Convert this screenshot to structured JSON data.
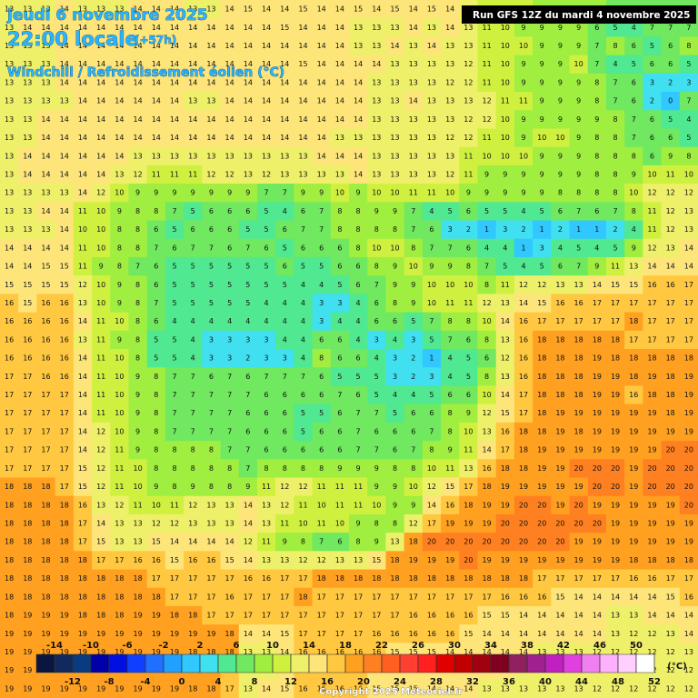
{
  "header": {
    "date": "jeudi 6 novembre 2025",
    "time": "22:00 locale",
    "offset": "(+57h)",
    "parameter": "Windchill / Refroidissement éolien (°C)",
    "run": "Run GFS 12Z du mardi 4 novembre 2025"
  },
  "footer": {
    "copyright": "Copyright 2025 Meteociel.fr"
  },
  "legend": {
    "unit": "(°C)",
    "ticks": [
      -14,
      -12,
      -10,
      -8,
      -6,
      -4,
      -2,
      0,
      2,
      4,
      6,
      8,
      10,
      12,
      14,
      16,
      18,
      20,
      22,
      24,
      26,
      28,
      30,
      32,
      34,
      36,
      38,
      40,
      42,
      44,
      46,
      48,
      50,
      52
    ],
    "colors": [
      "#0a1640",
      "#102a60",
      "#0a3a80",
      "#0000a8",
      "#0010e0",
      "#1040ff",
      "#2070ff",
      "#20a0ff",
      "#30c8ff",
      "#40e0f0",
      "#50e890",
      "#70e860",
      "#a0ee40",
      "#d0f040",
      "#eef06a",
      "#fde57a",
      "#ffc840",
      "#ffa020",
      "#ff8020",
      "#ff6020",
      "#ff4030",
      "#ff2020",
      "#e00000",
      "#c00000",
      "#a00010",
      "#800020",
      "#902060",
      "#a02090",
      "#c020c0",
      "#e040e0",
      "#f080f0",
      "#ffb0ff",
      "#ffd0ff",
      "#ffffff"
    ]
  },
  "grid": {
    "values": [
      [
        13,
        13,
        13,
        14,
        13,
        13,
        13,
        14,
        14,
        14,
        13,
        13,
        14,
        15,
        14,
        14,
        15,
        14,
        14,
        15,
        14,
        15,
        14,
        15,
        14,
        13,
        11,
        10,
        10,
        9,
        9,
        9,
        8,
        7,
        7,
        7,
        7,
        7
      ],
      [
        13,
        14,
        14,
        14,
        14,
        14,
        14,
        14,
        14,
        14,
        14,
        14,
        14,
        14,
        14,
        15,
        14,
        14,
        14,
        13,
        13,
        13,
        14,
        13,
        14,
        13,
        11,
        10,
        9,
        9,
        9,
        9,
        6,
        5,
        4,
        7,
        7,
        7
      ],
      [
        13,
        13,
        13,
        14,
        14,
        14,
        14,
        14,
        14,
        14,
        14,
        14,
        14,
        14,
        14,
        14,
        14,
        14,
        14,
        13,
        13,
        14,
        13,
        14,
        13,
        13,
        11,
        10,
        10,
        9,
        9,
        9,
        7,
        8,
        6,
        5,
        6,
        8
      ],
      [
        13,
        13,
        13,
        14,
        14,
        14,
        14,
        14,
        14,
        14,
        14,
        14,
        14,
        14,
        14,
        14,
        15,
        14,
        14,
        14,
        14,
        13,
        13,
        13,
        13,
        12,
        11,
        10,
        9,
        9,
        9,
        10,
        7,
        4,
        5,
        6,
        6,
        5
      ],
      [
        13,
        13,
        13,
        14,
        14,
        14,
        14,
        14,
        14,
        14,
        14,
        14,
        14,
        14,
        14,
        14,
        14,
        14,
        14,
        14,
        13,
        13,
        13,
        13,
        12,
        12,
        11,
        10,
        9,
        9,
        9,
        9,
        8,
        7,
        6,
        3,
        2,
        3
      ],
      [
        13,
        13,
        13,
        13,
        14,
        14,
        14,
        14,
        14,
        14,
        13,
        13,
        14,
        14,
        14,
        14,
        14,
        14,
        14,
        14,
        13,
        13,
        14,
        13,
        13,
        13,
        12,
        11,
        11,
        9,
        9,
        9,
        8,
        7,
        6,
        2,
        0,
        7
      ],
      [
        13,
        13,
        14,
        14,
        14,
        14,
        14,
        14,
        14,
        14,
        14,
        14,
        14,
        14,
        14,
        14,
        14,
        14,
        14,
        14,
        13,
        13,
        13,
        13,
        13,
        12,
        12,
        10,
        9,
        9,
        9,
        9,
        9,
        8,
        7,
        6,
        5,
        4
      ],
      [
        13,
        13,
        14,
        14,
        14,
        14,
        14,
        14,
        14,
        14,
        14,
        14,
        14,
        14,
        14,
        14,
        14,
        14,
        13,
        13,
        13,
        13,
        13,
        13,
        12,
        12,
        11,
        10,
        9,
        10,
        10,
        9,
        8,
        8,
        7,
        6,
        6,
        5
      ],
      [
        13,
        14,
        14,
        14,
        14,
        14,
        14,
        13,
        13,
        13,
        13,
        13,
        13,
        13,
        13,
        13,
        13,
        14,
        14,
        14,
        13,
        13,
        13,
        13,
        13,
        11,
        10,
        10,
        10,
        9,
        9,
        9,
        8,
        8,
        8,
        6,
        9,
        8
      ],
      [
        13,
        14,
        14,
        14,
        14,
        14,
        13,
        12,
        11,
        11,
        11,
        12,
        12,
        13,
        12,
        13,
        13,
        13,
        13,
        14,
        13,
        13,
        13,
        13,
        12,
        11,
        9,
        9,
        9,
        9,
        9,
        9,
        8,
        8,
        9,
        10,
        11,
        10
      ],
      [
        13,
        13,
        13,
        13,
        14,
        12,
        10,
        9,
        9,
        9,
        9,
        9,
        9,
        9,
        7,
        7,
        9,
        9,
        10,
        9,
        10,
        10,
        11,
        11,
        10,
        9,
        9,
        9,
        9,
        9,
        8,
        8,
        8,
        8,
        10,
        12,
        12,
        12
      ],
      [
        13,
        13,
        14,
        14,
        11,
        10,
        9,
        8,
        8,
        7,
        5,
        6,
        6,
        6,
        5,
        4,
        6,
        7,
        8,
        8,
        9,
        9,
        7,
        4,
        5,
        6,
        5,
        5,
        4,
        5,
        6,
        7,
        6,
        7,
        8,
        11,
        12,
        13
      ],
      [
        13,
        13,
        13,
        14,
        10,
        10,
        8,
        8,
        6,
        5,
        6,
        6,
        6,
        5,
        5,
        6,
        7,
        7,
        8,
        8,
        8,
        8,
        7,
        6,
        3,
        2,
        1,
        3,
        2,
        1,
        2,
        1,
        1,
        2,
        4,
        11,
        12,
        13
      ],
      [
        14,
        14,
        14,
        14,
        11,
        10,
        8,
        8,
        7,
        6,
        7,
        7,
        6,
        7,
        6,
        5,
        6,
        6,
        6,
        8,
        10,
        10,
        8,
        7,
        7,
        6,
        4,
        4,
        1,
        3,
        4,
        5,
        4,
        5,
        9,
        12,
        13,
        14
      ],
      [
        14,
        14,
        15,
        15,
        11,
        9,
        8,
        7,
        6,
        5,
        5,
        5,
        5,
        5,
        5,
        6,
        5,
        5,
        6,
        6,
        8,
        9,
        10,
        9,
        9,
        8,
        7,
        5,
        4,
        5,
        6,
        7,
        9,
        11,
        13,
        14,
        14,
        14
      ],
      [
        15,
        15,
        15,
        15,
        12,
        10,
        9,
        8,
        6,
        5,
        5,
        5,
        5,
        5,
        5,
        5,
        4,
        4,
        5,
        6,
        7,
        9,
        9,
        10,
        10,
        10,
        8,
        11,
        12,
        12,
        13,
        13,
        14,
        15,
        15,
        16,
        16,
        17
      ],
      [
        16,
        15,
        16,
        16,
        13,
        10,
        9,
        8,
        7,
        5,
        5,
        5,
        5,
        5,
        4,
        4,
        4,
        3,
        3,
        4,
        6,
        8,
        9,
        10,
        11,
        11,
        12,
        13,
        14,
        15,
        16,
        16,
        17,
        17,
        17,
        17,
        17,
        17
      ],
      [
        16,
        16,
        16,
        16,
        14,
        11,
        10,
        8,
        6,
        4,
        4,
        4,
        4,
        4,
        4,
        4,
        4,
        3,
        4,
        4,
        6,
        6,
        5,
        7,
        8,
        8,
        10,
        14,
        16,
        17,
        17,
        17,
        17,
        17,
        18,
        17,
        17,
        17
      ],
      [
        16,
        16,
        16,
        16,
        13,
        11,
        9,
        8,
        5,
        5,
        4,
        3,
        3,
        3,
        3,
        4,
        4,
        6,
        6,
        4,
        3,
        4,
        3,
        5,
        7,
        6,
        8,
        13,
        16,
        18,
        18,
        18,
        18,
        18,
        17,
        17,
        17,
        17
      ],
      [
        16,
        16,
        16,
        16,
        14,
        11,
        10,
        8,
        5,
        5,
        4,
        3,
        3,
        2,
        3,
        3,
        4,
        8,
        6,
        6,
        4,
        3,
        2,
        1,
        4,
        5,
        6,
        12,
        16,
        18,
        18,
        18,
        19,
        18,
        18,
        18,
        18,
        18
      ],
      [
        17,
        17,
        16,
        16,
        14,
        11,
        10,
        9,
        8,
        7,
        7,
        6,
        7,
        6,
        7,
        7,
        7,
        6,
        5,
        5,
        5,
        3,
        2,
        3,
        4,
        5,
        8,
        13,
        16,
        18,
        18,
        18,
        19,
        19,
        18,
        19,
        18,
        19
      ],
      [
        17,
        17,
        17,
        17,
        14,
        11,
        10,
        9,
        8,
        7,
        7,
        7,
        7,
        7,
        6,
        6,
        6,
        6,
        7,
        6,
        5,
        4,
        4,
        5,
        6,
        6,
        10,
        14,
        17,
        18,
        18,
        18,
        19,
        19,
        16,
        18,
        18,
        19
      ],
      [
        17,
        17,
        17,
        17,
        14,
        11,
        10,
        9,
        8,
        7,
        7,
        7,
        7,
        6,
        6,
        6,
        5,
        5,
        6,
        7,
        7,
        5,
        6,
        6,
        8,
        9,
        12,
        15,
        17,
        18,
        19,
        19,
        19,
        19,
        19,
        19,
        18,
        19
      ],
      [
        17,
        17,
        17,
        17,
        14,
        12,
        10,
        9,
        8,
        7,
        7,
        7,
        7,
        6,
        6,
        6,
        5,
        6,
        6,
        7,
        6,
        6,
        6,
        7,
        8,
        10,
        13,
        16,
        18,
        18,
        19,
        18,
        19,
        19,
        19,
        19,
        19,
        19
      ],
      [
        17,
        17,
        17,
        17,
        14,
        12,
        11,
        9,
        8,
        8,
        8,
        8,
        7,
        7,
        6,
        6,
        6,
        6,
        6,
        7,
        7,
        6,
        7,
        8,
        9,
        11,
        14,
        17,
        18,
        19,
        19,
        19,
        19,
        19,
        19,
        19,
        20,
        20
      ],
      [
        17,
        17,
        17,
        17,
        15,
        12,
        11,
        10,
        8,
        8,
        8,
        8,
        8,
        7,
        8,
        8,
        8,
        8,
        9,
        9,
        9,
        8,
        8,
        10,
        11,
        13,
        16,
        18,
        18,
        19,
        19,
        20,
        20,
        20,
        19,
        20,
        20,
        20
      ],
      [
        18,
        18,
        18,
        17,
        15,
        12,
        11,
        10,
        9,
        8,
        9,
        8,
        8,
        9,
        11,
        12,
        12,
        11,
        11,
        11,
        9,
        9,
        10,
        12,
        15,
        17,
        18,
        19,
        19,
        19,
        19,
        19,
        20,
        20,
        19,
        20,
        20,
        20
      ],
      [
        18,
        18,
        18,
        18,
        16,
        13,
        12,
        11,
        10,
        11,
        12,
        13,
        13,
        14,
        13,
        12,
        11,
        10,
        11,
        11,
        10,
        9,
        9,
        14,
        16,
        18,
        19,
        19,
        20,
        20,
        19,
        20,
        19,
        19,
        19,
        19,
        19,
        20
      ],
      [
        18,
        18,
        18,
        18,
        17,
        14,
        13,
        13,
        12,
        12,
        13,
        13,
        13,
        14,
        13,
        11,
        10,
        11,
        10,
        9,
        8,
        8,
        12,
        17,
        19,
        19,
        19,
        20,
        20,
        20,
        20,
        20,
        20,
        19,
        19,
        19,
        19,
        19
      ],
      [
        18,
        18,
        18,
        18,
        17,
        15,
        13,
        13,
        15,
        14,
        14,
        14,
        14,
        12,
        11,
        9,
        8,
        7,
        6,
        8,
        9,
        13,
        18,
        20,
        20,
        20,
        20,
        20,
        20,
        20,
        20,
        19,
        19,
        19,
        19,
        19,
        19,
        19
      ],
      [
        18,
        18,
        18,
        18,
        18,
        17,
        17,
        16,
        16,
        15,
        16,
        16,
        15,
        14,
        13,
        13,
        12,
        12,
        13,
        13,
        15,
        18,
        19,
        19,
        19,
        20,
        19,
        19,
        19,
        19,
        19,
        19,
        19,
        19,
        18,
        18,
        18,
        18
      ],
      [
        18,
        18,
        18,
        18,
        18,
        18,
        18,
        18,
        17,
        17,
        17,
        17,
        17,
        16,
        16,
        17,
        17,
        18,
        18,
        18,
        18,
        18,
        18,
        18,
        18,
        18,
        18,
        18,
        18,
        17,
        17,
        17,
        17,
        17,
        16,
        16,
        17,
        17
      ],
      [
        18,
        18,
        18,
        18,
        18,
        18,
        18,
        18,
        18,
        17,
        17,
        17,
        16,
        17,
        17,
        17,
        18,
        17,
        17,
        17,
        17,
        17,
        17,
        17,
        17,
        17,
        17,
        16,
        16,
        16,
        15,
        14,
        14,
        14,
        14,
        14,
        15,
        16
      ],
      [
        18,
        19,
        19,
        19,
        18,
        18,
        18,
        19,
        19,
        18,
        18,
        17,
        17,
        17,
        17,
        17,
        17,
        17,
        17,
        17,
        17,
        17,
        16,
        16,
        16,
        16,
        15,
        15,
        14,
        14,
        14,
        14,
        14,
        13,
        13,
        14,
        14,
        14
      ],
      [
        19,
        19,
        19,
        19,
        19,
        19,
        19,
        19,
        19,
        19,
        19,
        19,
        18,
        14,
        14,
        15,
        17,
        17,
        17,
        17,
        16,
        16,
        16,
        16,
        16,
        15,
        14,
        14,
        14,
        14,
        14,
        14,
        14,
        13,
        12,
        12,
        13,
        14
      ],
      [
        19,
        19,
        19,
        19,
        19,
        19,
        19,
        19,
        19,
        19,
        18,
        18,
        18,
        13,
        13,
        14,
        16,
        16,
        16,
        16,
        16,
        15,
        15,
        15,
        14,
        14,
        14,
        14,
        14,
        13,
        13,
        13,
        12,
        12,
        12,
        12,
        12,
        13
      ],
      [
        19,
        19,
        19,
        19,
        19,
        19,
        19,
        19,
        19,
        19,
        19,
        18,
        17,
        13,
        13,
        14,
        16,
        16,
        16,
        16,
        15,
        15,
        15,
        15,
        14,
        14,
        14,
        14,
        13,
        13,
        13,
        13,
        13,
        12,
        12,
        12,
        12,
        12
      ],
      [
        19,
        19,
        19,
        19,
        19,
        19,
        19,
        19,
        19,
        19,
        18,
        18,
        17,
        13,
        14,
        15,
        16,
        16,
        16,
        16,
        15,
        15,
        15,
        14,
        14,
        14,
        13,
        13,
        13,
        13,
        13,
        13,
        12,
        12,
        12,
        12,
        12,
        12
      ]
    ]
  }
}
